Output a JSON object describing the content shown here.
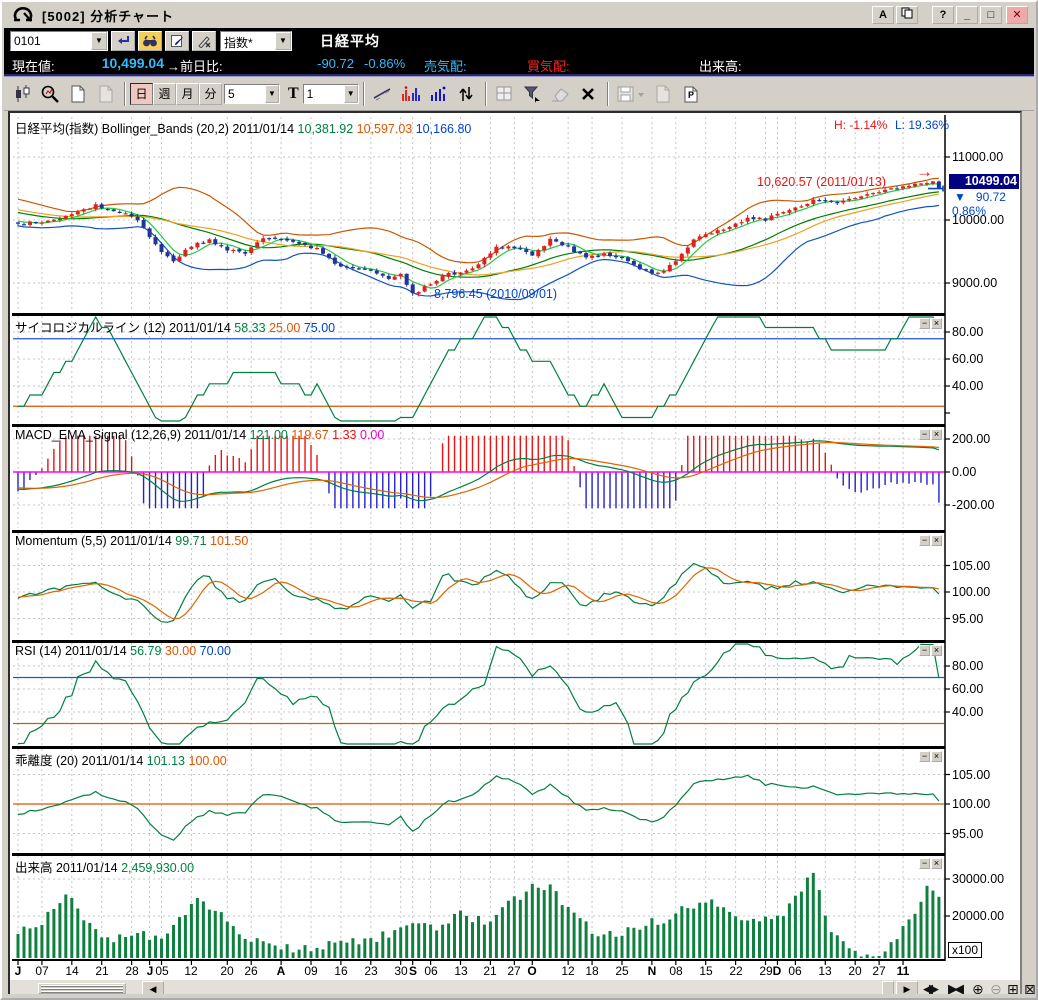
{
  "window": {
    "title": "[5002] 分析チャート",
    "a_button": "A",
    "help_button": "?",
    "logo": "app-logo"
  },
  "toolbar1": {
    "code": "0101",
    "index_select": "指数*",
    "symbol": "日経平均"
  },
  "quote": {
    "current_label": "現在値:",
    "current_value": "10,499.04",
    "change_label": "→前日比:",
    "change_value": "-90.72",
    "change_pct": "-0.86%",
    "ask_label": "売気配:",
    "bid_label": "買気配:",
    "volume_label": "出来高:"
  },
  "toolbar2": {
    "period_buttons": [
      "日",
      "週",
      "月",
      "分"
    ],
    "active_period": 0,
    "minute_value": "5",
    "t_label": "T",
    "t_value": "1"
  },
  "main_panel": {
    "hl_high": "H: -1.14%",
    "hl_low": "L: 19.36%",
    "high_annotation": "10,620.57 (2011/01/13)",
    "low_annotation": "8,796.45 (2010/09/01)",
    "price_box": "10499.04",
    "change_marker": "▼",
    "change_value": "90.72",
    "change_pct": "0.86%",
    "arrow_marker": "→",
    "volume_unit": "x100"
  },
  "panels": [
    {
      "key": "main",
      "title_parts": [
        [
          "日経平均(指数) Bollinger_Bands (20,2) 2011/01/14 ",
          "ck"
        ],
        [
          "10,381.92 ",
          "cg"
        ],
        [
          "10,597.03 ",
          "co"
        ],
        [
          "10,166.80",
          "cb"
        ]
      ],
      "yticks": [
        [
          11000,
          "11000.00"
        ],
        [
          10000,
          "10000.00"
        ],
        [
          9000,
          "9000.00"
        ]
      ],
      "windowbtns": false
    },
    {
      "key": "psy",
      "title_parts": [
        [
          "サイコロジカルライン (12) 2011/01/14 ",
          "ck"
        ],
        [
          "58.33 ",
          "cg"
        ],
        [
          "25.00 ",
          "co"
        ],
        [
          "75.00",
          "cb"
        ]
      ],
      "yticks": [
        [
          80,
          "80.00"
        ],
        [
          60,
          "60.00"
        ],
        [
          40,
          "40.00"
        ]
      ],
      "windowbtns": true
    },
    {
      "key": "macd",
      "title_parts": [
        [
          "MACD_EMA_Signal (12,26,9) 2011/01/14 ",
          "ck"
        ],
        [
          "121.00 ",
          "cg"
        ],
        [
          "119.67 ",
          "co"
        ],
        [
          "1.33 ",
          "cr"
        ],
        [
          "0.00",
          "cm"
        ]
      ],
      "yticks": [
        [
          200,
          "200.00"
        ],
        [
          0,
          "0.00"
        ],
        [
          -200,
          "-200.00"
        ]
      ],
      "windowbtns": true
    },
    {
      "key": "mom",
      "title_parts": [
        [
          "Momentum (5,5) 2011/01/14 ",
          "ck"
        ],
        [
          "99.71 ",
          "cg"
        ],
        [
          "101.50",
          "co"
        ]
      ],
      "yticks": [
        [
          105,
          "105.00"
        ],
        [
          100,
          "100.00"
        ],
        [
          95,
          "95.00"
        ]
      ],
      "windowbtns": true
    },
    {
      "key": "rsi",
      "title_parts": [
        [
          "RSI (14) 2011/01/14 ",
          "ck"
        ],
        [
          "56.79 ",
          "cg"
        ],
        [
          "30.00 ",
          "co"
        ],
        [
          "70.00",
          "cb"
        ]
      ],
      "yticks": [
        [
          80,
          "80.00"
        ],
        [
          60,
          "60.00"
        ],
        [
          40,
          "40.00"
        ]
      ],
      "windowbtns": true
    },
    {
      "key": "kai",
      "title_parts": [
        [
          "乖離度 (20) 2011/01/14 ",
          "ck"
        ],
        [
          "101.13 ",
          "cg"
        ],
        [
          "100.00",
          "co"
        ]
      ],
      "yticks": [
        [
          105,
          "105.00"
        ],
        [
          100,
          "100.00"
        ],
        [
          95,
          "95.00"
        ]
      ],
      "windowbtns": true
    },
    {
      "key": "vol",
      "title_parts": [
        [
          "出来高 2011/01/14 ",
          "ck"
        ],
        [
          "2,459,930.00",
          "cg"
        ]
      ],
      "yticks": [
        [
          30000,
          "30000.00"
        ],
        [
          20000,
          "20000.00"
        ]
      ],
      "windowbtns": true
    }
  ],
  "chart_data": {
    "type": "candlestick",
    "symbol": "日経平均(指数)",
    "date": "2011/01/14",
    "x_labels": [
      {
        "t": "J",
        "d": 0,
        "bold": true
      },
      {
        "t": "07",
        "d": 4
      },
      {
        "t": "14",
        "d": 9
      },
      {
        "t": "21",
        "d": 14
      },
      {
        "t": "28",
        "d": 19
      },
      {
        "t": "J",
        "d": 22,
        "bold": true
      },
      {
        "t": "05",
        "d": 24
      },
      {
        "t": "12",
        "d": 29
      },
      {
        "t": "20",
        "d": 35
      },
      {
        "t": "26",
        "d": 39
      },
      {
        "t": "A",
        "d": 44,
        "bold": true
      },
      {
        "t": "09",
        "d": 49
      },
      {
        "t": "16",
        "d": 54
      },
      {
        "t": "23",
        "d": 59
      },
      {
        "t": "30",
        "d": 64
      },
      {
        "t": "S",
        "d": 66,
        "bold": true
      },
      {
        "t": "06",
        "d": 69
      },
      {
        "t": "13",
        "d": 74
      },
      {
        "t": "21",
        "d": 79
      },
      {
        "t": "27",
        "d": 83
      },
      {
        "t": "O",
        "d": 86,
        "bold": true
      },
      {
        "t": "12",
        "d": 92
      },
      {
        "t": "18",
        "d": 96
      },
      {
        "t": "25",
        "d": 101
      },
      {
        "t": "N",
        "d": 106,
        "bold": true
      },
      {
        "t": "08",
        "d": 110
      },
      {
        "t": "15",
        "d": 115
      },
      {
        "t": "22",
        "d": 120
      },
      {
        "t": "29",
        "d": 125
      },
      {
        "t": "D",
        "d": 127,
        "bold": true
      },
      {
        "t": "06",
        "d": 130
      },
      {
        "t": "13",
        "d": 135
      },
      {
        "t": "20",
        "d": 140
      },
      {
        "t": "27",
        "d": 144
      },
      {
        "t": "11",
        "d": 148,
        "bold": true
      }
    ],
    "close_anchors": [
      [
        0,
        9950
      ],
      [
        4,
        9960
      ],
      [
        9,
        10080
      ],
      [
        13,
        10230
      ],
      [
        15,
        10180
      ],
      [
        19,
        10080
      ],
      [
        22,
        9750
      ],
      [
        24,
        9480
      ],
      [
        26,
        9350
      ],
      [
        29,
        9590
      ],
      [
        32,
        9680
      ],
      [
        35,
        9530
      ],
      [
        38,
        9480
      ],
      [
        41,
        9690
      ],
      [
        44,
        9720
      ],
      [
        47,
        9650
      ],
      [
        50,
        9540
      ],
      [
        53,
        9300
      ],
      [
        56,
        9240
      ],
      [
        59,
        9180
      ],
      [
        62,
        9060
      ],
      [
        64,
        9150
      ],
      [
        66,
        8830
      ],
      [
        68,
        8930
      ],
      [
        71,
        9120
      ],
      [
        74,
        9170
      ],
      [
        77,
        9300
      ],
      [
        80,
        9580
      ],
      [
        83,
        9560
      ],
      [
        86,
        9450
      ],
      [
        89,
        9690
      ],
      [
        92,
        9560
      ],
      [
        95,
        9430
      ],
      [
        98,
        9460
      ],
      [
        101,
        9390
      ],
      [
        104,
        9200
      ],
      [
        107,
        9150
      ],
      [
        110,
        9360
      ],
      [
        113,
        9690
      ],
      [
        116,
        9800
      ],
      [
        119,
        9870
      ],
      [
        122,
        10040
      ],
      [
        125,
        10000
      ],
      [
        128,
        10150
      ],
      [
        131,
        10240
      ],
      [
        134,
        10330
      ],
      [
        137,
        10290
      ],
      [
        140,
        10330
      ],
      [
        143,
        10430
      ],
      [
        146,
        10480
      ],
      [
        149,
        10540
      ],
      [
        152,
        10590
      ],
      [
        153,
        10590
      ],
      [
        154,
        10499
      ]
    ],
    "volume_anchors": [
      [
        0,
        16000
      ],
      [
        4,
        18000
      ],
      [
        8,
        27000
      ],
      [
        12,
        17000
      ],
      [
        16,
        14000
      ],
      [
        20,
        15500
      ],
      [
        24,
        13000
      ],
      [
        30,
        25000
      ],
      [
        33,
        22000
      ],
      [
        37,
        14000
      ],
      [
        42,
        12000
      ],
      [
        48,
        11000
      ],
      [
        54,
        12500
      ],
      [
        58,
        13500
      ],
      [
        62,
        15000
      ],
      [
        66,
        19000
      ],
      [
        70,
        17000
      ],
      [
        74,
        21000
      ],
      [
        78,
        18000
      ],
      [
        82,
        23000
      ],
      [
        86,
        27500
      ],
      [
        89,
        28500
      ],
      [
        92,
        22000
      ],
      [
        96,
        16000
      ],
      [
        100,
        15000
      ],
      [
        104,
        17500
      ],
      [
        108,
        19000
      ],
      [
        112,
        22500
      ],
      [
        116,
        24500
      ],
      [
        120,
        19000
      ],
      [
        124,
        18000
      ],
      [
        128,
        21000
      ],
      [
        133,
        31500
      ],
      [
        136,
        15000
      ],
      [
        140,
        10500
      ],
      [
        144,
        9800
      ],
      [
        147,
        14000
      ],
      [
        150,
        21000
      ],
      [
        152,
        27500
      ],
      [
        154,
        24599
      ]
    ],
    "marked_low": {
      "d": 66,
      "price": 8796.45
    },
    "marked_high": {
      "d": 153,
      "price": 10620.57
    },
    "bollinger": {
      "period": 20,
      "sigma": 2,
      "mid": 10381.92,
      "upper": 10597.03,
      "lower": 10166.8
    },
    "indicators": {
      "psychological": {
        "period": 12,
        "value": 58.33,
        "ref_low": 25,
        "ref_high": 75,
        "ylim": [
          15,
          85
        ]
      },
      "macd": {
        "params": [
          12,
          26,
          9
        ],
        "macd": 121.0,
        "signal": 119.67,
        "osc": 1.33,
        "zero": 0.0,
        "ylim": [
          -330,
          265
        ]
      },
      "momentum": {
        "params": [
          5,
          5
        ],
        "value": 99.71,
        "ma": 101.5,
        "ylim": [
          93,
          107
        ]
      },
      "rsi": {
        "period": 14,
        "value": 56.79,
        "ref_low": 30,
        "ref_high": 70,
        "ylim": [
          20,
          95
        ]
      },
      "kairi": {
        "period": 20,
        "value": 101.13,
        "ref": 100.0,
        "ylim": [
          93.5,
          107
        ]
      },
      "volume": {
        "value": 2459930.0,
        "unit": "x100",
        "ylim": [
          8650,
          30800
        ]
      }
    },
    "main_yticks": [
      11000,
      10000,
      9000
    ],
    "last_price": 10499.04
  }
}
